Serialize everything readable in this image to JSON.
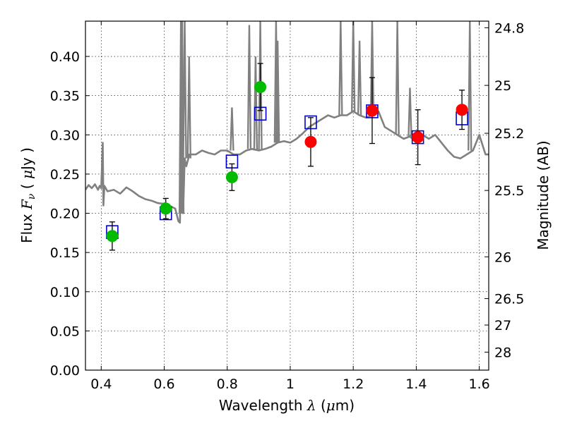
{
  "chart_data": {
    "type": "scatter",
    "title": "",
    "xlabel": "Wavelength  λ (μm)",
    "xlabel_parts": {
      "prefix": "Wavelength  ",
      "lambda": "λ",
      "open": " (",
      "mu": "μ",
      "unit": "m)"
    },
    "ylabel": "Flux  Fν  ( μJy )",
    "ylabel_parts": {
      "prefix": "Flux  ",
      "F": "F",
      "nu": "ν",
      "open": "  ( ",
      "mu": "μ",
      "unit": "Jy )"
    },
    "y2label": "Magnitude (AB)",
    "xlim": [
      0.35,
      1.63
    ],
    "ylim": [
      0.0,
      0.445
    ],
    "grid": true,
    "x_ticks": [
      {
        "v": 0.4,
        "label": "0.4"
      },
      {
        "v": 0.6,
        "label": "0.6"
      },
      {
        "v": 0.8,
        "label": "0.8"
      },
      {
        "v": 1.0,
        "label": "1"
      },
      {
        "v": 1.2,
        "label": "1.2"
      },
      {
        "v": 1.4,
        "label": "1.4"
      },
      {
        "v": 1.6,
        "label": "1.6"
      }
    ],
    "y_ticks": [
      {
        "v": 0.0,
        "label": "0.00"
      },
      {
        "v": 0.05,
        "label": "0.05"
      },
      {
        "v": 0.1,
        "label": "0.10"
      },
      {
        "v": 0.15,
        "label": "0.15"
      },
      {
        "v": 0.2,
        "label": "0.20"
      },
      {
        "v": 0.25,
        "label": "0.25"
      },
      {
        "v": 0.3,
        "label": "0.30"
      },
      {
        "v": 0.35,
        "label": "0.35"
      },
      {
        "v": 0.4,
        "label": "0.40"
      }
    ],
    "y2_ticks": [
      {
        "flux": 0.4366,
        "label": "24.8"
      },
      {
        "flux": 0.3631,
        "label": "25"
      },
      {
        "flux": 0.302,
        "label": "25.2"
      },
      {
        "flux": 0.2291,
        "label": "25.5"
      },
      {
        "flux": 0.1445,
        "label": "26"
      },
      {
        "flux": 0.0912,
        "label": "26.5"
      },
      {
        "flux": 0.0575,
        "label": "27"
      },
      {
        "flux": 0.0229,
        "label": "28"
      }
    ],
    "series": [
      {
        "name": "model spectrum",
        "kind": "line",
        "color": "#808080",
        "x": [
          0.35,
          0.36,
          0.37,
          0.38,
          0.39,
          0.395,
          0.4,
          0.405,
          0.407,
          0.41,
          0.42,
          0.44,
          0.46,
          0.48,
          0.5,
          0.52,
          0.54,
          0.56,
          0.58,
          0.6,
          0.62,
          0.635,
          0.645,
          0.65,
          0.652,
          0.655,
          0.66,
          0.665,
          0.67,
          0.68,
          0.7,
          0.72,
          0.74,
          0.76,
          0.78,
          0.8,
          0.82,
          0.84,
          0.86,
          0.88,
          0.9,
          0.92,
          0.94,
          0.96,
          0.98,
          1.0,
          1.02,
          1.04,
          1.06,
          1.08,
          1.1,
          1.12,
          1.14,
          1.16,
          1.18,
          1.2,
          1.22,
          1.24,
          1.26,
          1.28,
          1.3,
          1.32,
          1.34,
          1.36,
          1.38,
          1.4,
          1.42,
          1.44,
          1.46,
          1.48,
          1.5,
          1.52,
          1.54,
          1.56,
          1.58,
          1.6,
          1.62,
          1.63
        ],
        "y": [
          0.23,
          0.236,
          0.232,
          0.237,
          0.23,
          0.235,
          0.232,
          0.29,
          0.21,
          0.235,
          0.228,
          0.23,
          0.225,
          0.233,
          0.228,
          0.222,
          0.218,
          0.216,
          0.213,
          0.212,
          0.209,
          0.206,
          0.19,
          0.188,
          0.25,
          0.445,
          0.2,
          0.27,
          0.26,
          0.275,
          0.275,
          0.28,
          0.277,
          0.275,
          0.28,
          0.28,
          0.275,
          0.275,
          0.28,
          0.282,
          0.28,
          0.282,
          0.285,
          0.29,
          0.292,
          0.29,
          0.295,
          0.302,
          0.31,
          0.315,
          0.32,
          0.325,
          0.322,
          0.325,
          0.325,
          0.33,
          0.325,
          0.322,
          0.325,
          0.33,
          0.31,
          0.305,
          0.3,
          0.295,
          0.298,
          0.29,
          0.3,
          0.295,
          0.3,
          0.29,
          0.28,
          0.272,
          0.27,
          0.275,
          0.28,
          0.3,
          0.275,
          0.275
        ]
      },
      {
        "name": "model spectrum spikes",
        "kind": "spikes",
        "color": "#808080",
        "x": [
          0.653,
          0.657,
          0.665,
          0.679,
          0.815,
          0.87,
          0.89,
          0.905,
          0.955,
          0.96,
          1.16,
          1.2,
          1.22,
          1.26,
          1.34,
          1.38,
          1.57
        ],
        "base": [
          0.2,
          0.2,
          0.27,
          0.27,
          0.28,
          0.282,
          0.28,
          0.28,
          0.29,
          0.29,
          0.325,
          0.33,
          0.325,
          0.325,
          0.3,
          0.298,
          0.28
        ],
        "peak": [
          0.445,
          0.445,
          0.445,
          0.4,
          0.335,
          0.44,
          0.4,
          0.445,
          0.445,
          0.42,
          0.445,
          0.445,
          0.42,
          0.445,
          0.445,
          0.36,
          0.445
        ]
      },
      {
        "name": "model band flux",
        "kind": "open-square",
        "color": "#0000cc",
        "x": [
          0.435,
          0.605,
          0.815,
          0.905,
          1.065,
          1.26,
          1.405,
          1.545
        ],
        "y": [
          0.176,
          0.2,
          0.266,
          0.327,
          0.316,
          0.33,
          0.297,
          0.321
        ]
      },
      {
        "name": "optical photometry",
        "kind": "filled-circle",
        "color": "#00bb00",
        "x": [
          0.435,
          0.605,
          0.815,
          0.905
        ],
        "y": [
          0.171,
          0.206,
          0.246,
          0.361
        ],
        "yerr": [
          0.018,
          0.013,
          0.017,
          0.03
        ]
      },
      {
        "name": "near-IR photometry",
        "kind": "filled-circle",
        "color": "#ff0000",
        "x": [
          1.065,
          1.26,
          1.405,
          1.545
        ],
        "y": [
          0.291,
          0.331,
          0.297,
          0.332
        ],
        "yerr": [
          0.031,
          0.042,
          0.035,
          0.025
        ]
      }
    ]
  }
}
